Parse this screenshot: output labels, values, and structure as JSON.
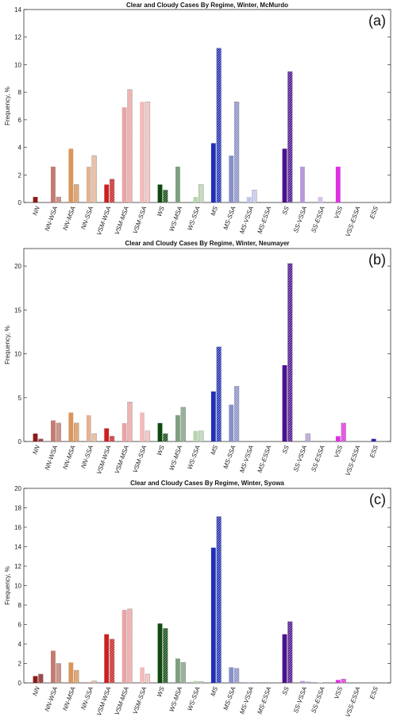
{
  "chart_data": [
    {
      "type": "bar",
      "title": "Clear and Cloudy Cases By Regime, Winter, McMurdo",
      "panel_label": "(a)",
      "ylabel": "Frequency, %",
      "ylim": [
        0,
        14
      ],
      "yticks": [
        0,
        2,
        4,
        6,
        8,
        10,
        12,
        14
      ],
      "categories": [
        "NN",
        "NN-WSA",
        "NN-MSA",
        "NN-SSA",
        "VSM-WSA",
        "VSM-MSA",
        "VSM-SSA",
        "WS",
        "WS-MSA",
        "WS-SSA",
        "MS",
        "MS-SSA",
        "MS-VSSA",
        "MS-ESSA",
        "SS",
        "SS-VSSA",
        "SS-ESSA",
        "VSS",
        "VSS-ESSA",
        "ESS"
      ],
      "colors": [
        "#8b1a1a",
        "#c47a70",
        "#d9955a",
        "#e2b396",
        "#cc2020",
        "#eba3a3",
        "#f0bcbc",
        "#0f4a0f",
        "#7f9f7f",
        "#b8d4b0",
        "#1f2fb8",
        "#8890c8",
        "#c0c6ea",
        "#d8dcf4",
        "#4a1090",
        "#b899d6",
        "#d4c2e8",
        "#e030e0",
        "#eeb0ee",
        "#2a2aa0"
      ],
      "series": [
        {
          "name": "Clear",
          "values": [
            0.4,
            2.6,
            3.9,
            2.6,
            1.3,
            6.9,
            7.3,
            1.3,
            2.6,
            0.4,
            4.3,
            3.4,
            0.4,
            0,
            3.9,
            2.6,
            0.4,
            2.6,
            0,
            0
          ]
        },
        {
          "name": "Cloudy",
          "values": [
            0,
            0.4,
            1.3,
            3.4,
            1.7,
            8.2,
            7.3,
            0.9,
            0,
            1.3,
            11.2,
            7.3,
            0.9,
            0,
            9.5,
            0,
            0,
            0,
            0,
            0
          ]
        }
      ]
    },
    {
      "type": "bar",
      "title": "Clear and Cloudy Cases By Regime, Winter, Neumayer",
      "panel_label": "(b)",
      "ylabel": "Frequency, %",
      "ylim": [
        0,
        22
      ],
      "yticks": [
        0,
        5,
        10,
        15,
        20
      ],
      "categories": [
        "NN",
        "NN-WSA",
        "NN-MSA",
        "NN-SSA",
        "VSM-WSA",
        "VSM-MSA",
        "VSM-SSA",
        "WS",
        "WS-MSA",
        "WS-SSA",
        "MS",
        "MS-SSA",
        "MS-VSSA",
        "MS-ESSA",
        "SS",
        "SS-VSSA",
        "SS-ESSA",
        "VSS",
        "VSS-ESSA",
        "ESS"
      ],
      "colors": [
        "#8b1a1a",
        "#c47a70",
        "#d9955a",
        "#e2b396",
        "#cc2020",
        "#eba3a3",
        "#f0bcbc",
        "#0f4a0f",
        "#7f9f7f",
        "#b8d4b0",
        "#1f2fb8",
        "#8890c8",
        "#c0c6ea",
        "#d8dcf4",
        "#4a1090",
        "#b899d6",
        "#d4c2e8",
        "#e030e0",
        "#eeb0ee",
        "#2a2aa0"
      ],
      "series": [
        {
          "name": "Clear",
          "values": [
            0.9,
            2.4,
            3.3,
            3.0,
            1.5,
            2.1,
            3.3,
            2.1,
            3.0,
            1.2,
            5.7,
            4.2,
            0,
            0,
            8.7,
            0,
            0,
            0.6,
            0,
            0.3
          ]
        },
        {
          "name": "Cloudy",
          "values": [
            0.3,
            2.1,
            2.1,
            0.9,
            0.6,
            4.5,
            1.2,
            0.9,
            3.9,
            1.2,
            10.8,
            6.3,
            0,
            0,
            20.3,
            0.9,
            0,
            2.1,
            0,
            0
          ]
        }
      ]
    },
    {
      "type": "bar",
      "title": "Clear and Cloudy Cases By Regime, Winter, Syowa",
      "panel_label": "(c)",
      "ylabel": "Frequency, %",
      "ylim": [
        0,
        20
      ],
      "yticks": [
        0,
        2,
        4,
        6,
        8,
        10,
        12,
        14,
        16,
        18,
        20
      ],
      "categories": [
        "NN",
        "NN-WSA",
        "NN-MSA",
        "NN-SSA",
        "VSM-WSA",
        "VSM-MSA",
        "VSM-SSA",
        "WS",
        "WS-MSA",
        "WS-SSA",
        "MS",
        "MS-SSA",
        "MS-VSSA",
        "MS-ESSA",
        "SS",
        "SS-VSSA",
        "SS-ESSA",
        "VSS",
        "VSS-ESSA",
        "ESS"
      ],
      "colors": [
        "#8b1a1a",
        "#c47a70",
        "#d9955a",
        "#e2b396",
        "#cc2020",
        "#eba3a3",
        "#f0bcbc",
        "#0f4a0f",
        "#7f9f7f",
        "#b8d4b0",
        "#1f2fb8",
        "#8890c8",
        "#c0c6ea",
        "#d8dcf4",
        "#4a1090",
        "#b899d6",
        "#d4c2e8",
        "#e030e0",
        "#eeb0ee",
        "#2a2aa0"
      ],
      "series": [
        {
          "name": "Clear",
          "values": [
            0.7,
            3.3,
            2.1,
            0.1,
            5.0,
            7.5,
            1.6,
            6.1,
            2.5,
            0.2,
            13.9,
            1.6,
            0.1,
            0,
            5.0,
            0.2,
            0.05,
            0.3,
            0,
            0
          ]
        },
        {
          "name": "Cloudy",
          "values": [
            0.9,
            2.0,
            1.3,
            0.2,
            4.5,
            7.6,
            0.9,
            5.6,
            2.1,
            0.15,
            17.1,
            1.5,
            0.05,
            0,
            6.3,
            0.1,
            0.05,
            0.4,
            0,
            0
          ]
        }
      ]
    }
  ]
}
